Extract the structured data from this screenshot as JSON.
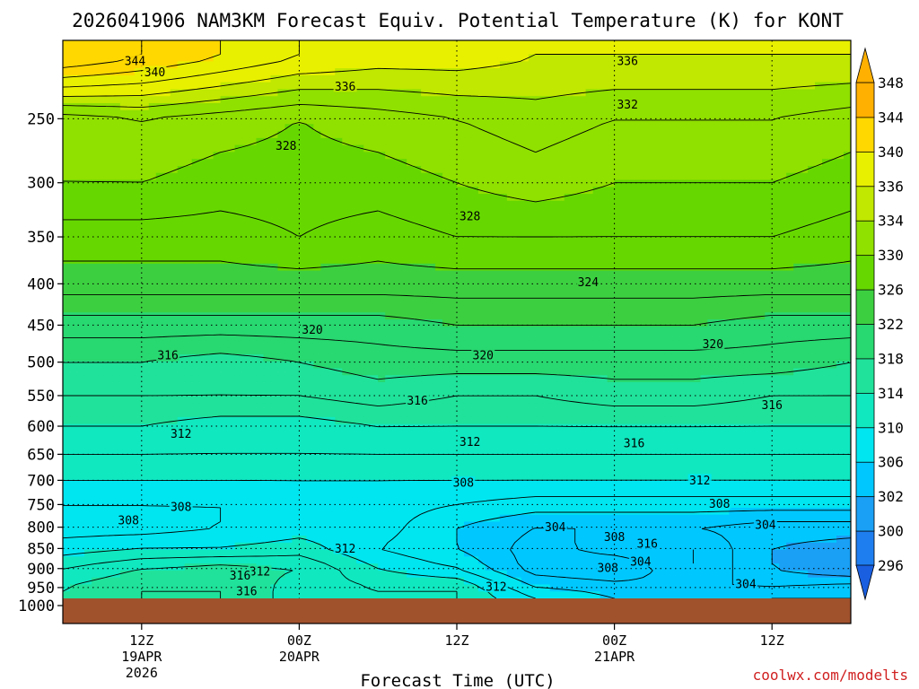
{
  "title": "2026041906 NAM3KM Forecast Equiv. Potential Temperature (K) for KONT",
  "x_axis_title": "Forecast Time (UTC)",
  "credit": "coolwx.com/modelts",
  "colors": {
    "ground": "#a0522d",
    "contour_line": "#000000",
    "gridline": "#000000"
  },
  "chart_data": {
    "type": "heatmap",
    "variable": "Equiv. Potential Temperature (K)",
    "y_axis": {
      "ticks": [
        250,
        300,
        350,
        400,
        450,
        500,
        550,
        600,
        650,
        700,
        750,
        800,
        850,
        900,
        950,
        1000
      ],
      "scale": "log",
      "range_hPa": [
        200,
        1000
      ],
      "inverted": true
    },
    "x_axis": {
      "range_hours": [
        0,
        60
      ],
      "ticks": [
        {
          "label": "12Z",
          "sub": "19APR",
          "sub2": "2026",
          "hour": 6
        },
        {
          "label": "00Z",
          "sub": "20APR",
          "sub2": "",
          "hour": 18
        },
        {
          "label": "12Z",
          "sub": "",
          "sub2": "",
          "hour": 30
        },
        {
          "label": "00Z",
          "sub": "21APR",
          "sub2": "",
          "hour": 42
        },
        {
          "label": "12Z",
          "sub": "",
          "sub2": "",
          "hour": 54
        }
      ]
    },
    "colorbar": {
      "levels": [
        296,
        300,
        302,
        306,
        310,
        314,
        318,
        322,
        326,
        330,
        334,
        336,
        340,
        344,
        348
      ],
      "colors": [
        "#1a5fe0",
        "#1e7ef0",
        "#1aa0f5",
        "#00c8ff",
        "#00e6f0",
        "#10e8c0",
        "#20e29a",
        "#28d870",
        "#3cd040",
        "#66d800",
        "#90e000",
        "#c0e800",
        "#e8f000",
        "#ffd800",
        "#ffb000"
      ]
    },
    "profile_levels_hPa": [
      210,
      250,
      300,
      350,
      400,
      450,
      500,
      550,
      600,
      650,
      700,
      750,
      800,
      850,
      900,
      950,
      975
    ],
    "profile_times_hours": [
      0,
      6,
      12,
      18,
      24,
      30,
      36,
      42,
      48,
      54,
      60
    ],
    "theta_e_K": [
      [
        344,
        342,
        340,
        338,
        337,
        337,
        336,
        336,
        336,
        336,
        336
      ],
      [
        331,
        332,
        331,
        330,
        331,
        332,
        333,
        332,
        332,
        332,
        331
      ],
      [
        330,
        330,
        329,
        329,
        329,
        330,
        331,
        330,
        330,
        330,
        329
      ],
      [
        327,
        327,
        327,
        328,
        327,
        328,
        328,
        328,
        328,
        328,
        327
      ],
      [
        325,
        325,
        325,
        325,
        325,
        325,
        325,
        325,
        325,
        325,
        325
      ],
      [
        321,
        321,
        321,
        321,
        321,
        322,
        322,
        322,
        322,
        321,
        321
      ],
      [
        318,
        318,
        317,
        318,
        319,
        319,
        319,
        319,
        319,
        319,
        318
      ],
      [
        316,
        316,
        316,
        316,
        317,
        316,
        316,
        317,
        317,
        316,
        316
      ],
      [
        314,
        314,
        313,
        313,
        314,
        314,
        314,
        314,
        314,
        314,
        314
      ],
      [
        312,
        312,
        312,
        312,
        312,
        312,
        312,
        312,
        312,
        312,
        312
      ],
      [
        310,
        310,
        310,
        310,
        310,
        310,
        310,
        310,
        310,
        310,
        310
      ],
      [
        308,
        308,
        308,
        309,
        309,
        308,
        307,
        307,
        307,
        307,
        307
      ],
      [
        307,
        307,
        308,
        309,
        309,
        306,
        304,
        304,
        304,
        303,
        303
      ],
      [
        309,
        310,
        310,
        311,
        308,
        306,
        303,
        305,
        306,
        302,
        301
      ],
      [
        312,
        314,
        315,
        314,
        310,
        308,
        303,
        302,
        306,
        302,
        300
      ],
      [
        314,
        316,
        316,
        313,
        312,
        312,
        306,
        305,
        304,
        304,
        305
      ],
      [
        314,
        316,
        316,
        313,
        312,
        312,
        308,
        306,
        305,
        306,
        306
      ]
    ],
    "contour_labels": [
      {
        "text": "344",
        "hour": 5.5,
        "p": 212
      },
      {
        "text": "340",
        "hour": 7.0,
        "p": 219
      },
      {
        "text": "336",
        "hour": 21.5,
        "p": 228
      },
      {
        "text": "336",
        "hour": 43.0,
        "p": 212
      },
      {
        "text": "332",
        "hour": 43.0,
        "p": 240
      },
      {
        "text": "328",
        "hour": 17.0,
        "p": 270
      },
      {
        "text": "328",
        "hour": 31.0,
        "p": 330
      },
      {
        "text": "324",
        "hour": 40.0,
        "p": 398
      },
      {
        "text": "320",
        "hour": 19.0,
        "p": 456
      },
      {
        "text": "320",
        "hour": 32.0,
        "p": 490
      },
      {
        "text": "320",
        "hour": 49.5,
        "p": 475
      },
      {
        "text": "316",
        "hour": 8.0,
        "p": 490
      },
      {
        "text": "316",
        "hour": 27.0,
        "p": 558
      },
      {
        "text": "316",
        "hour": 43.5,
        "p": 630
      },
      {
        "text": "316",
        "hour": 54.0,
        "p": 565
      },
      {
        "text": "312",
        "hour": 9.0,
        "p": 613
      },
      {
        "text": "312",
        "hour": 31.0,
        "p": 627
      },
      {
        "text": "312",
        "hour": 48.5,
        "p": 700
      },
      {
        "text": "308",
        "hour": 30.5,
        "p": 705
      },
      {
        "text": "308",
        "hour": 9.0,
        "p": 755
      },
      {
        "text": "308",
        "hour": 5.0,
        "p": 785
      },
      {
        "text": "308",
        "hour": 50.0,
        "p": 748
      },
      {
        "text": "304",
        "hour": 37.5,
        "p": 800
      },
      {
        "text": "304",
        "hour": 53.5,
        "p": 795
      },
      {
        "text": "304",
        "hour": 44.0,
        "p": 882
      },
      {
        "text": "304",
        "hour": 52.0,
        "p": 940
      },
      {
        "text": "308",
        "hour": 42.0,
        "p": 822
      },
      {
        "text": "308",
        "hour": 41.5,
        "p": 898
      },
      {
        "text": "312",
        "hour": 21.5,
        "p": 850
      },
      {
        "text": "312",
        "hour": 15.0,
        "p": 908
      },
      {
        "text": "312",
        "hour": 33.0,
        "p": 948
      },
      {
        "text": "316",
        "hour": 44.5,
        "p": 838
      },
      {
        "text": "316",
        "hour": 13.5,
        "p": 918
      },
      {
        "text": "316",
        "hour": 14.0,
        "p": 960
      }
    ]
  }
}
